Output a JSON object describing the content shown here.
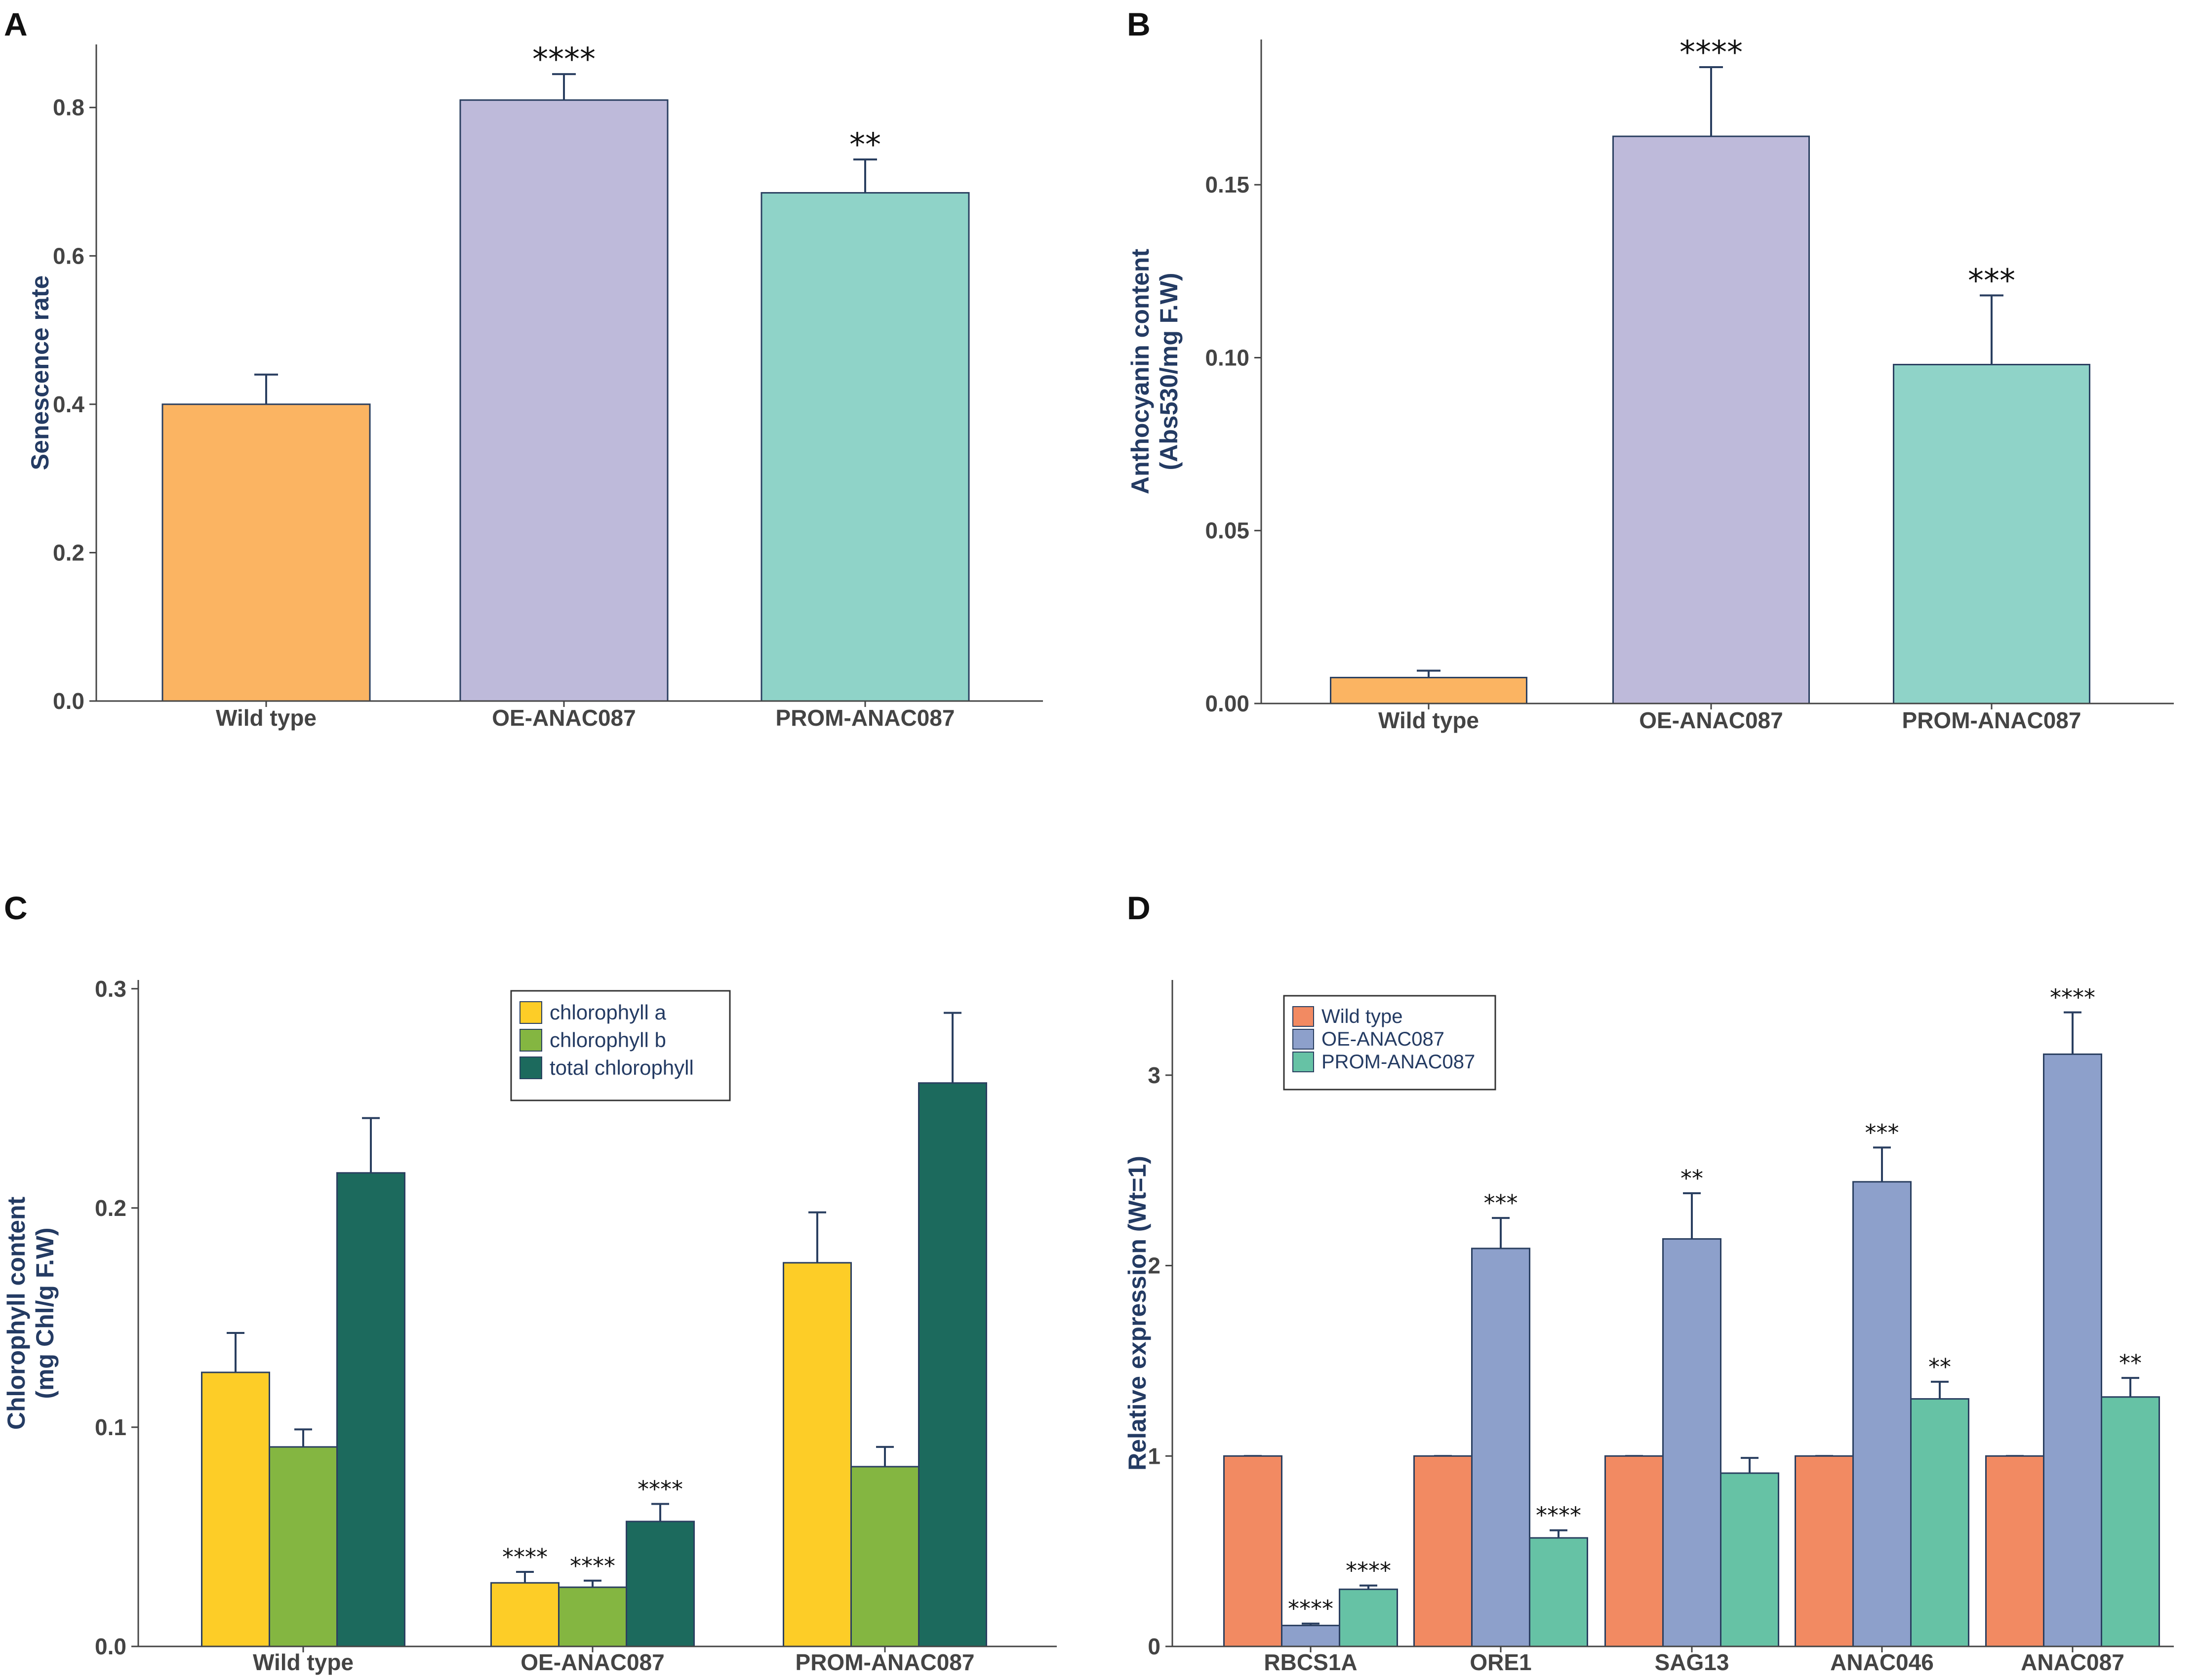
{
  "colors": {
    "wild_type": "#fbb462",
    "oe": "#bebada",
    "prom": "#8fd3c8",
    "chl_a": "#fdcd27",
    "chl_b": "#84b641",
    "chl_total": "#1c6a5d",
    "d_wild": "#f28a62",
    "d_oe": "#8da0cb",
    "d_prom": "#66c2a5",
    "error_bar": "#2a3f60",
    "axis": "#444444"
  },
  "chart_data": [
    {
      "panel": "A",
      "type": "bar",
      "categories": [
        "Wild type",
        "OE-ANAC087",
        "PROM-ANAC087"
      ],
      "values": [
        0.4,
        0.81,
        0.685
      ],
      "errors": [
        0.04,
        0.035,
        0.045
      ],
      "significance": [
        "",
        "****",
        "**"
      ],
      "ylabel": "Senescence rate",
      "xlabel": "",
      "ylim": [
        0,
        0.885
      ],
      "yticks": [
        "0.0",
        "0.2",
        "0.4",
        "0.6",
        "0.8"
      ]
    },
    {
      "panel": "B",
      "type": "bar",
      "categories": [
        "Wild type",
        "OE-ANAC087",
        "PROM-ANAC087"
      ],
      "values": [
        0.0075,
        0.164,
        0.098
      ],
      "errors": [
        0.002,
        0.02,
        0.02
      ],
      "significance": [
        "",
        "****",
        "***"
      ],
      "ylabel_line1": "Anthocyanin content",
      "ylabel_line2": "(Abs530/mg F.W)",
      "xlabel": "",
      "ylim": [
        0,
        0.192
      ],
      "yticks": [
        "0.00",
        "0.05",
        "0.10",
        "0.15"
      ]
    },
    {
      "panel": "C",
      "type": "bar",
      "categories": [
        "Wild type",
        "OE-ANAC087",
        "PROM-ANAC087"
      ],
      "series": [
        {
          "name": "chlorophyll a",
          "values": [
            0.125,
            0.029,
            0.175
          ],
          "errors": [
            0.018,
            0.005,
            0.023
          ],
          "significance": [
            "",
            "****",
            ""
          ]
        },
        {
          "name": "chlorophyll b",
          "values": [
            0.091,
            0.027,
            0.082
          ],
          "errors": [
            0.008,
            0.003,
            0.009
          ],
          "significance": [
            "",
            "****",
            ""
          ]
        },
        {
          "name": "total chlorophyll",
          "values": [
            0.216,
            0.057,
            0.257
          ],
          "errors": [
            0.025,
            0.008,
            0.032
          ],
          "significance": [
            "",
            "****",
            ""
          ]
        }
      ],
      "ylabel_line1": "Chlorophyll content",
      "ylabel_line2": "(mg Chl/g F.W)",
      "xlabel": "",
      "ylim": [
        0,
        0.304
      ],
      "yticks": [
        "0.0",
        "0.1",
        "0.2",
        "0.3"
      ],
      "legend": "top-center"
    },
    {
      "panel": "D",
      "type": "bar",
      "categories": [
        "RBCS1A",
        "ORE1",
        "SAG13",
        "ANAC046",
        "ANAC087"
      ],
      "series": [
        {
          "name": "Wild type",
          "values": [
            1.0,
            1.0,
            1.0,
            1.0,
            1.0
          ],
          "errors": [
            0,
            0,
            0,
            0,
            0
          ],
          "significance": [
            "",
            "",
            "",
            "",
            ""
          ]
        },
        {
          "name": "OE-ANAC087",
          "values": [
            0.11,
            2.09,
            2.14,
            2.44,
            3.11
          ],
          "errors": [
            0.01,
            0.16,
            0.24,
            0.18,
            0.22
          ],
          "significance": [
            "****",
            "***",
            "**",
            "***",
            "****"
          ]
        },
        {
          "name": "PROM-ANAC087",
          "values": [
            0.3,
            0.57,
            0.91,
            1.3,
            1.31
          ],
          "errors": [
            0.02,
            0.04,
            0.08,
            0.09,
            0.1
          ],
          "significance": [
            "****",
            "****",
            "",
            "**",
            "**"
          ]
        }
      ],
      "ylabel": "Relative expression (Wt=1)",
      "xlabel": "",
      "ylim": [
        0,
        3.5
      ],
      "yticks": [
        "0",
        "1",
        "2",
        "3"
      ],
      "legend": "top-left"
    }
  ]
}
